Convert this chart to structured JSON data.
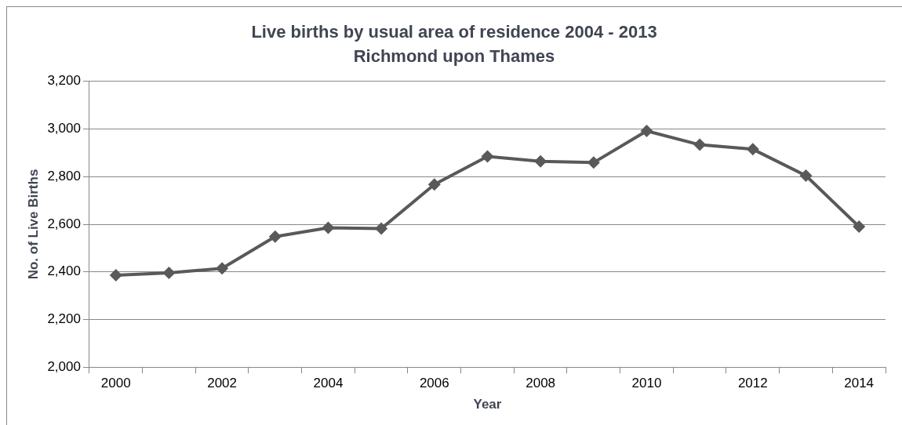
{
  "chart_data": {
    "type": "line",
    "title": "Live births by usual area of residence 2004 - 2013",
    "subtitle": "Richmond upon Thames",
    "xlabel": "Year",
    "ylabel": "No. of Live Births",
    "categories": [
      "2000",
      null,
      "2002",
      null,
      "2004",
      null,
      "2006",
      null,
      "2008",
      null,
      "2010",
      null,
      "2012",
      null,
      "2014"
    ],
    "series": [
      {
        "color": "#595959",
        "values": [
          2386,
          2396,
          2415,
          2548,
          2585,
          2582,
          2767,
          2885,
          2864,
          2859,
          2992,
          2934,
          2915,
          2804,
          2590
        ]
      }
    ],
    "ylim": [
      2000,
      3200
    ],
    "yticks": [
      {
        "value": 2000,
        "label": "2,000"
      },
      {
        "value": 2200,
        "label": "2,200"
      },
      {
        "value": 2400,
        "label": "2,400"
      },
      {
        "value": 2600,
        "label": "2,600"
      },
      {
        "value": 2800,
        "label": "2,800"
      },
      {
        "value": 3000,
        "label": "3,000"
      },
      {
        "value": 3200,
        "label": "3,200"
      }
    ],
    "grid": "y",
    "legend": false,
    "marker": "diamond",
    "line_style": "solid"
  }
}
